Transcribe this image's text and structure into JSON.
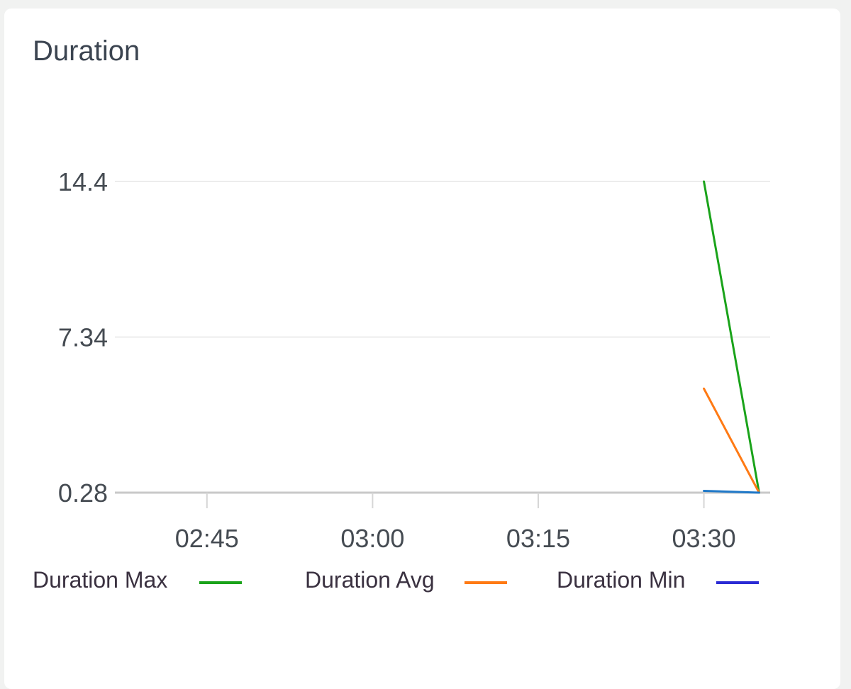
{
  "panel": {
    "title": "Duration"
  },
  "chart_data": {
    "type": "line",
    "title": "Duration",
    "xlabel": "",
    "ylabel": "",
    "x_ticks": [
      "02:45",
      "03:00",
      "03:15",
      "03:30"
    ],
    "x_tick_minutes": [
      165,
      180,
      195,
      210
    ],
    "xlim_minutes": [
      157.5,
      216
    ],
    "y_ticks": [
      14.4,
      7.34,
      0.28
    ],
    "ylim": [
      0.28,
      14.4
    ],
    "grid": true,
    "legend_position": "bottom",
    "series": [
      {
        "name": "Duration Max",
        "color": "#1aa31a",
        "x": [
          "03:30",
          "03:35"
        ],
        "x_minutes": [
          210,
          215
        ],
        "values": [
          14.4,
          0.28
        ]
      },
      {
        "name": "Duration Avg",
        "color": "#ff7a14",
        "x": [
          "03:30",
          "03:35"
        ],
        "x_minutes": [
          210,
          215
        ],
        "values": [
          5.0,
          0.28
        ]
      },
      {
        "name": "Duration Min",
        "color": "#1f78c8",
        "legend_color": "#2b2bd4",
        "x": [
          "03:30",
          "03:35"
        ],
        "x_minutes": [
          210,
          215
        ],
        "values": [
          0.36,
          0.28
        ]
      }
    ]
  }
}
